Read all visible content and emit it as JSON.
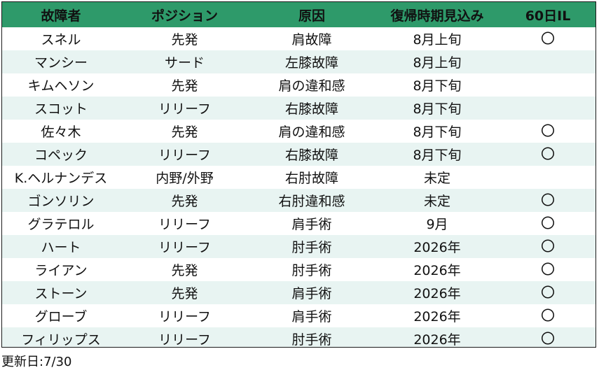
{
  "table": {
    "headers": [
      "故障者",
      "ポジション",
      "原因",
      "復帰時期見込み",
      "60日IL"
    ],
    "rows": [
      [
        "スネル",
        "先発",
        "肩故障",
        "8月上旬",
        "〇"
      ],
      [
        "マンシー",
        "サード",
        "左膝故障",
        "8月上旬",
        ""
      ],
      [
        "キムヘソン",
        "先発",
        "肩の違和感",
        "8月下旬",
        ""
      ],
      [
        "スコット",
        "リリーフ",
        "右膝故障",
        "8月下旬",
        ""
      ],
      [
        "佐々木",
        "先発",
        "肩の違和感",
        "8月下旬",
        "〇"
      ],
      [
        "コペック",
        "リリーフ",
        "右膝故障",
        "8月下旬",
        "〇"
      ],
      [
        "K.ヘルナンデス",
        "内野/外野",
        "右肘故障",
        "未定",
        ""
      ],
      [
        "ゴンソリン",
        "先発",
        "右肘違和感",
        "未定",
        "〇"
      ],
      [
        "グラテロル",
        "リリーフ",
        "肩手術",
        "9月",
        "〇"
      ],
      [
        "ハート",
        "リリーフ",
        "肘手術",
        "2026年",
        "〇"
      ],
      [
        "ライアン",
        "先発",
        "肘手術",
        "2026年",
        "〇"
      ],
      [
        "ストーン",
        "先発",
        "肩手術",
        "2026年",
        "〇"
      ],
      [
        "グローブ",
        "リリーフ",
        "肩手術",
        "2026年",
        "〇"
      ],
      [
        "フィリップス",
        "リリーフ",
        "肘手術",
        "2026年",
        "〇"
      ]
    ]
  },
  "footnote": "更新日:7/30",
  "colors": {
    "header_bg": "#2e9a6a",
    "stripe_bg": "#e8f4f2",
    "border": "#1a1a1a"
  }
}
